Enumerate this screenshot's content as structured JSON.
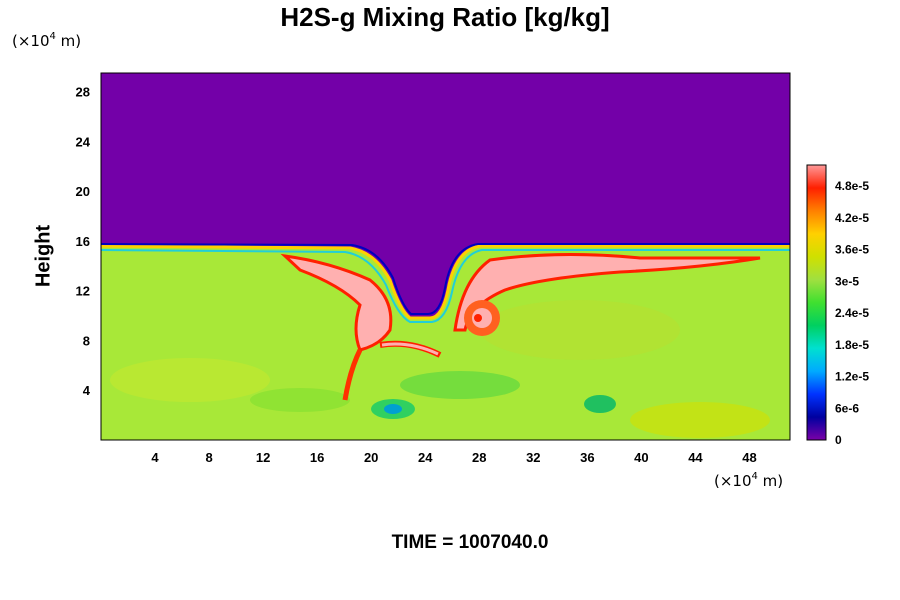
{
  "chart_data": {
    "type": "heatmap",
    "title": "H2S-g Mixing Ratio [kg/kg]",
    "xlabel": "",
    "ylabel": "Height",
    "x_unit": "(×10⁴ m)",
    "y_unit": "(×10⁴ m)",
    "x_ticks": [
      4,
      8,
      12,
      16,
      20,
      24,
      28,
      32,
      36,
      40,
      44,
      48
    ],
    "y_ticks": [
      4,
      8,
      12,
      16,
      20,
      24,
      28
    ],
    "xlim": [
      0,
      51
    ],
    "ylim": [
      0,
      29.5
    ],
    "colorbar": {
      "labels": [
        "0",
        "6e-6",
        "1.2e-5",
        "1.8e-5",
        "2.4e-5",
        "3e-5",
        "3.6e-5",
        "4.2e-5",
        "4.8e-5"
      ],
      "min": 0,
      "max": 5.2e-05,
      "colors": [
        "#7a00a8",
        "#0000a0",
        "#0033ff",
        "#00aaff",
        "#00e0d0",
        "#00d060",
        "#40e030",
        "#a0e040",
        "#d0e000",
        "#ffd000",
        "#ff8000",
        "#ff2000",
        "#ff9999"
      ]
    },
    "regions": {
      "upper_layer_value": 0,
      "lower_layer_value": 3e-05,
      "interface_height": 15.5,
      "plume_core_value": 5e-05
    },
    "footer": "TIME = 1007040.0"
  }
}
